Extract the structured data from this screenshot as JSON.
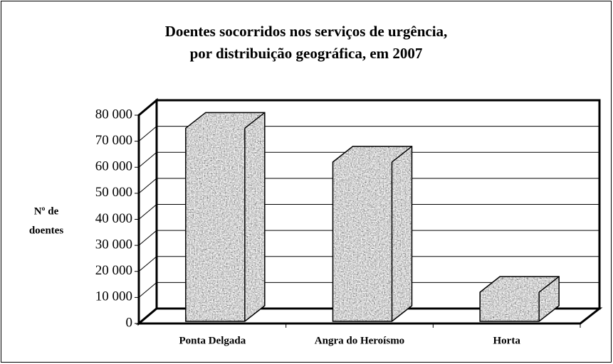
{
  "chart_data": {
    "type": "bar3d",
    "title": [
      "Doentes socorridos nos serviços de urgência,",
      "por distribuição geográfica, em 2007"
    ],
    "ylabel": [
      "Nº de",
      "doentes"
    ],
    "categories": [
      "Ponta Delgada",
      "Angra do Heroísmo",
      "Horta"
    ],
    "values": [
      75000,
      62000,
      12000
    ],
    "color": "#a6a6a6",
    "ylim": [
      0,
      80000
    ],
    "yticks": [
      {
        "value": 0,
        "label": "0"
      },
      {
        "value": 10000,
        "label": "10 000"
      },
      {
        "value": 20000,
        "label": "20 000"
      },
      {
        "value": 30000,
        "label": "30 000"
      },
      {
        "value": 40000,
        "label": "40 000"
      },
      {
        "value": 50000,
        "label": "50 000"
      },
      {
        "value": 60000,
        "label": "60 000"
      },
      {
        "value": 70000,
        "label": "70 000"
      },
      {
        "value": 80000,
        "label": "80 000"
      }
    ],
    "grid": true
  }
}
